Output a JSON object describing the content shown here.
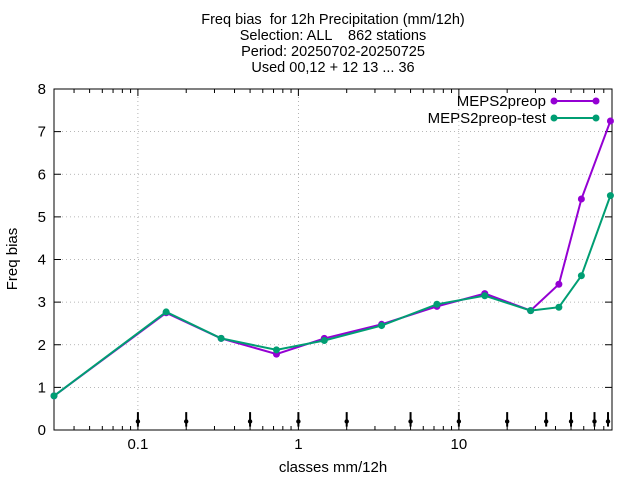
{
  "chart_data": {
    "type": "line",
    "title": "Freq bias  for 12h Precipitation (mm/12h)",
    "subtitle_lines": [
      "Selection: ALL    862 stations",
      "Period: 20250702-20250725",
      "Used 00,12 + 12 13 ... 36"
    ],
    "xlabel": "classes mm/12h",
    "ylabel": "Freq bias",
    "xscale": "log",
    "xlim": [
      0.03,
      90
    ],
    "ylim": [
      0,
      8
    ],
    "grid": true,
    "legend_position": "top-right",
    "x_ticks": [
      0.1,
      1,
      10
    ],
    "x_tick_labels": [
      "0.1",
      "1",
      "10"
    ],
    "y_ticks": [
      0,
      1,
      2,
      3,
      4,
      5,
      6,
      7,
      8
    ],
    "y_tick_labels": [
      "0",
      "1",
      "2",
      "3",
      "4",
      "5",
      "6",
      "7",
      "8"
    ],
    "threshold_markers": [
      0.1,
      0.2,
      0.5,
      1,
      2,
      5,
      10,
      20,
      35,
      50,
      70,
      85
    ],
    "series": [
      {
        "name": "MEPS2preop",
        "color": "#9400d3",
        "x": [
          0.03,
          0.15,
          0.33,
          0.73,
          1.45,
          3.3,
          7.3,
          14.5,
          28,
          42,
          58,
          88
        ],
        "y": [
          0.8,
          2.75,
          2.15,
          1.78,
          2.15,
          2.48,
          2.9,
          3.2,
          2.8,
          3.42,
          5.42,
          7.25
        ]
      },
      {
        "name": "MEPS2preop-test",
        "color": "#009e73",
        "x": [
          0.03,
          0.15,
          0.33,
          0.73,
          1.45,
          3.3,
          7.3,
          14.5,
          28,
          42,
          58,
          88
        ],
        "y": [
          0.8,
          2.77,
          2.15,
          1.88,
          2.1,
          2.45,
          2.95,
          3.15,
          2.8,
          2.88,
          3.62,
          5.5
        ]
      }
    ]
  }
}
